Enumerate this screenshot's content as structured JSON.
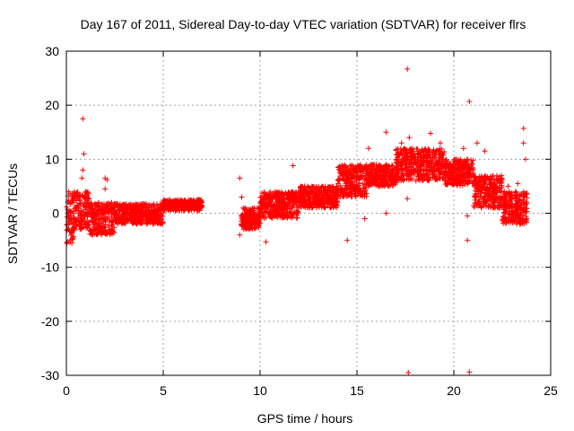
{
  "chart_data": {
    "type": "scatter",
    "title": "Day 167 of 2011, Sidereal Day-to-day VTEC variation (SDTVAR) for receiver flrs",
    "xlabel": "GPS time / hours",
    "ylabel": "SDTVAR / TECUs",
    "xlim": [
      0,
      25
    ],
    "ylim": [
      -30,
      30
    ],
    "xticks": [
      0,
      5,
      10,
      15,
      20,
      25
    ],
    "yticks": [
      -30,
      -20,
      -10,
      0,
      10,
      20,
      30
    ],
    "xtick_labels": [
      "0",
      "5",
      "10",
      "15",
      "20",
      "25"
    ],
    "ytick_labels": [
      "-30",
      "-20",
      "-10",
      "0",
      "10",
      "20",
      "30"
    ],
    "grid": true,
    "marker": "+",
    "color": "#ff0000",
    "series": [
      {
        "name": "SDTVAR",
        "clusters": [
          {
            "x": [
              0.0,
              0.4
            ],
            "y_min": -6,
            "y_max": 4
          },
          {
            "x": [
              0.4,
              1.2
            ],
            "y_min": -3,
            "y_max": 4
          },
          {
            "x": [
              1.2,
              2.5
            ],
            "y_min": -4,
            "y_max": 2
          },
          {
            "x": [
              2.5,
              5.0
            ],
            "y_min": -2,
            "y_max": 1.8
          },
          {
            "x": [
              5.0,
              7.0
            ],
            "y_min": 0.5,
            "y_max": 2.5
          },
          {
            "x": [
              9.0,
              10.0
            ],
            "y_min": -3,
            "y_max": 1
          },
          {
            "x": [
              10.0,
              12.0
            ],
            "y_min": -1,
            "y_max": 4
          },
          {
            "x": [
              12.0,
              14.0
            ],
            "y_min": 1,
            "y_max": 5
          },
          {
            "x": [
              14.0,
              15.5
            ],
            "y_min": 3,
            "y_max": 9
          },
          {
            "x": [
              15.5,
              17.0
            ],
            "y_min": 5,
            "y_max": 9
          },
          {
            "x": [
              17.0,
              19.5
            ],
            "y_min": 6,
            "y_max": 12
          },
          {
            "x": [
              19.5,
              21.0
            ],
            "y_min": 5,
            "y_max": 10
          },
          {
            "x": [
              21.0,
              22.5
            ],
            "y_min": 1,
            "y_max": 7
          },
          {
            "x": [
              22.5,
              23.8
            ],
            "y_min": -2,
            "y_max": 4
          }
        ],
        "outliers": [
          {
            "x": 0.85,
            "y": 17.5
          },
          {
            "x": 0.9,
            "y": 11
          },
          {
            "x": 0.85,
            "y": 8
          },
          {
            "x": 0.8,
            "y": 6.5
          },
          {
            "x": 2.0,
            "y": 6.5
          },
          {
            "x": 2.1,
            "y": 6.2
          },
          {
            "x": 2.0,
            "y": 4.5
          },
          {
            "x": 8.95,
            "y": 6.5
          },
          {
            "x": 9.05,
            "y": 3
          },
          {
            "x": 8.95,
            "y": -4
          },
          {
            "x": 10.3,
            "y": -5.3
          },
          {
            "x": 11.7,
            "y": 8.8
          },
          {
            "x": 14.5,
            "y": -5
          },
          {
            "x": 15.4,
            "y": -1
          },
          {
            "x": 15.6,
            "y": 12
          },
          {
            "x": 16.5,
            "y": 15
          },
          {
            "x": 16.5,
            "y": 0
          },
          {
            "x": 17.3,
            "y": 13
          },
          {
            "x": 17.6,
            "y": 26.7
          },
          {
            "x": 17.7,
            "y": 14
          },
          {
            "x": 17.6,
            "y": 2.7
          },
          {
            "x": 17.65,
            "y": -29.5
          },
          {
            "x": 18.8,
            "y": 14.8
          },
          {
            "x": 19.3,
            "y": 13
          },
          {
            "x": 20.5,
            "y": 12
          },
          {
            "x": 20.8,
            "y": 20.7
          },
          {
            "x": 20.8,
            "y": -29.4
          },
          {
            "x": 20.7,
            "y": -5
          },
          {
            "x": 20.7,
            "y": -0.5
          },
          {
            "x": 21.2,
            "y": 13
          },
          {
            "x": 21.6,
            "y": 11.5
          },
          {
            "x": 22.8,
            "y": 5
          },
          {
            "x": 23.3,
            "y": 5.5
          },
          {
            "x": 23.6,
            "y": 15.7
          },
          {
            "x": 23.6,
            "y": 13
          },
          {
            "x": 23.7,
            "y": 10
          }
        ]
      }
    ]
  }
}
